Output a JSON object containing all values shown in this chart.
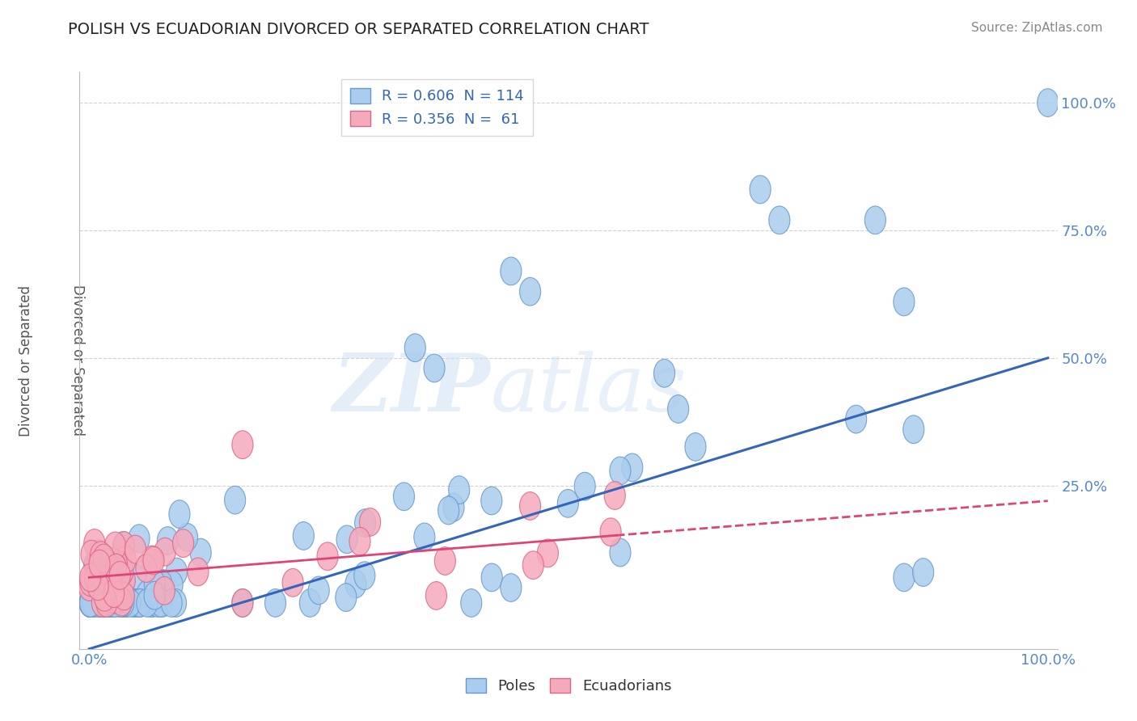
{
  "title": "POLISH VS ECUADORIAN DIVORCED OR SEPARATED CORRELATION CHART",
  "source": "Source: ZipAtlas.com",
  "ylabel": "Divorced or Separated",
  "xlim": [
    0.0,
    1.0
  ],
  "ylim": [
    0.0,
    1.0
  ],
  "background_color": "#ffffff",
  "watermark_text": "ZIP",
  "watermark_text2": "atlas",
  "poles_color": "#aaccee",
  "poles_edge_color": "#6699cc",
  "ecuador_color": "#f5aabb",
  "ecuador_edge_color": "#dd6688",
  "blue_line_color": "#3366bb",
  "pink_line_color": "#dd4477",
  "R_poles": 0.606,
  "N_poles": 114,
  "R_ecuador": 0.356,
  "N_ecuador": 61,
  "grid_color": "#cccccc",
  "tick_color": "#5588cc",
  "title_color": "#222222",
  "source_color": "#888888"
}
